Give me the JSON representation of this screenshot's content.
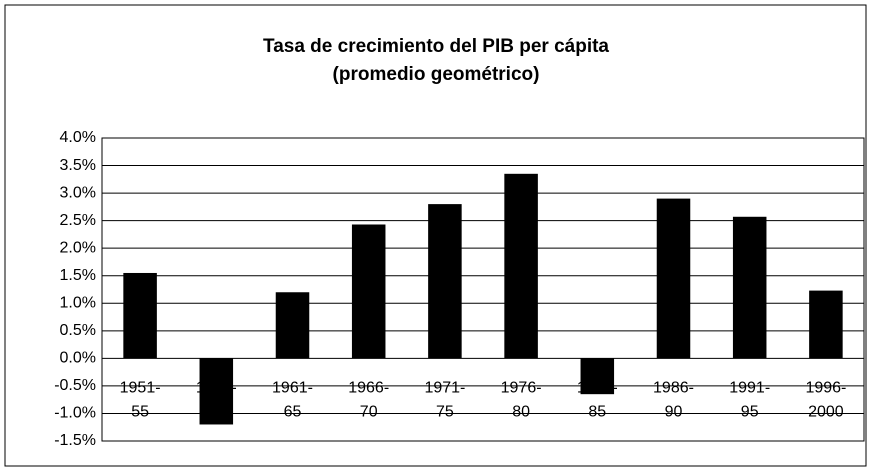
{
  "chart_data": {
    "type": "bar",
    "title": "Tasa de crecimiento del PIB per cápita",
    "subtitle": "(promedio geométrico)",
    "categories": [
      "1951-55",
      "1956-60",
      "1961-65",
      "1966-70",
      "1971-75",
      "1976-80",
      "1981-85",
      "1986-90",
      "1991-95",
      "1996-2000"
    ],
    "values": [
      1.55,
      -1.2,
      1.2,
      2.43,
      2.8,
      3.35,
      -0.65,
      2.9,
      2.57,
      1.23
    ],
    "color": "#000000",
    "ylim": [
      -1.5,
      4
    ],
    "yticks": [
      {
        "value": -1.5,
        "label": "-1.5%"
      },
      {
        "value": -1,
        "label": "-1.0%"
      },
      {
        "value": -0.5,
        "label": "-0.5%"
      },
      {
        "value": 0,
        "label": "0.0%"
      },
      {
        "value": 0.5,
        "label": "0.5%"
      },
      {
        "value": 1,
        "label": "1.0%"
      },
      {
        "value": 1.5,
        "label": "1.5%"
      },
      {
        "value": 2,
        "label": "2.0%"
      },
      {
        "value": 2.5,
        "label": "2.5%"
      },
      {
        "value": 3,
        "label": "3.0%"
      },
      {
        "value": 3.5,
        "label": "3.5%"
      },
      {
        "value": 4,
        "label": "4.0%"
      }
    ],
    "grid": true
  }
}
